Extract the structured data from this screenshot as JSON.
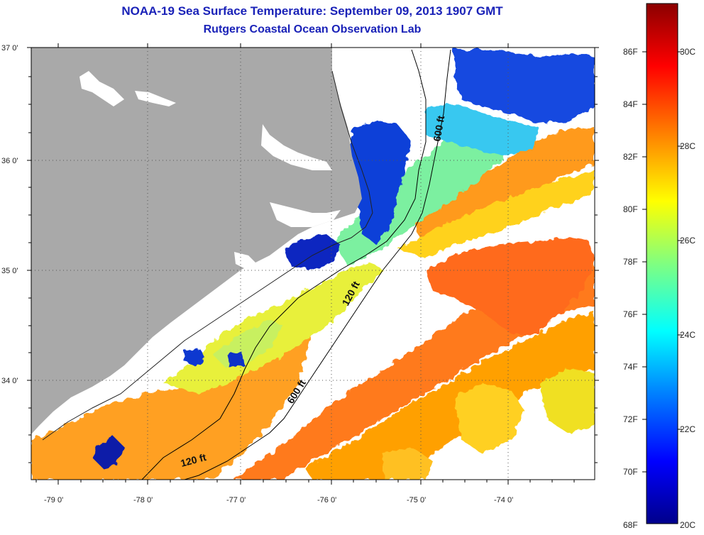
{
  "title": {
    "line1": "NOAA-19 Sea Surface Temperature:  September 09, 2013 1907 GMT",
    "line2": "Rutgers Coastal Ocean Observation Lab"
  },
  "map": {
    "lat_ticks": [
      {
        "label": "37 0'",
        "lat": 37.0
      },
      {
        "label": "36 0'",
        "lat": 36.0
      },
      {
        "label": "35 0'",
        "lat": 35.0
      },
      {
        "label": "34 0'",
        "lat": 34.0
      }
    ],
    "lon_ticks": [
      {
        "label": "-79 0'",
        "lon": -79.0
      },
      {
        "label": "-78 0'",
        "lon": -78.0
      },
      {
        "label": "-77 0'",
        "lon": -77.0
      },
      {
        "label": "-76 0'",
        "lon": -76.0
      },
      {
        "label": "-75 0'",
        "lon": -75.0
      },
      {
        "label": "-74 0'",
        "lon": -74.0
      }
    ],
    "contour_labels": [
      {
        "text": "600 ft"
      },
      {
        "text": "120 ft"
      },
      {
        "text": "600 ft"
      },
      {
        "text": "120 ft"
      }
    ],
    "colors": {
      "land": "#a9a9a9",
      "cloud": "#ffffff",
      "frame": "#000000"
    }
  },
  "colorbar": {
    "fahrenheit": [
      "86F",
      "84F",
      "82F",
      "80F",
      "78F",
      "76F",
      "74F",
      "72F",
      "70F",
      "68F"
    ],
    "celsius": [
      "30C",
      "28C",
      "26C",
      "24C",
      "22C",
      "20C"
    ],
    "colors": [
      "#00008b",
      "#0000ff",
      "#0080ff",
      "#00ffff",
      "#80ff80",
      "#ffff00",
      "#ff8000",
      "#ff0000",
      "#8b0000"
    ]
  }
}
